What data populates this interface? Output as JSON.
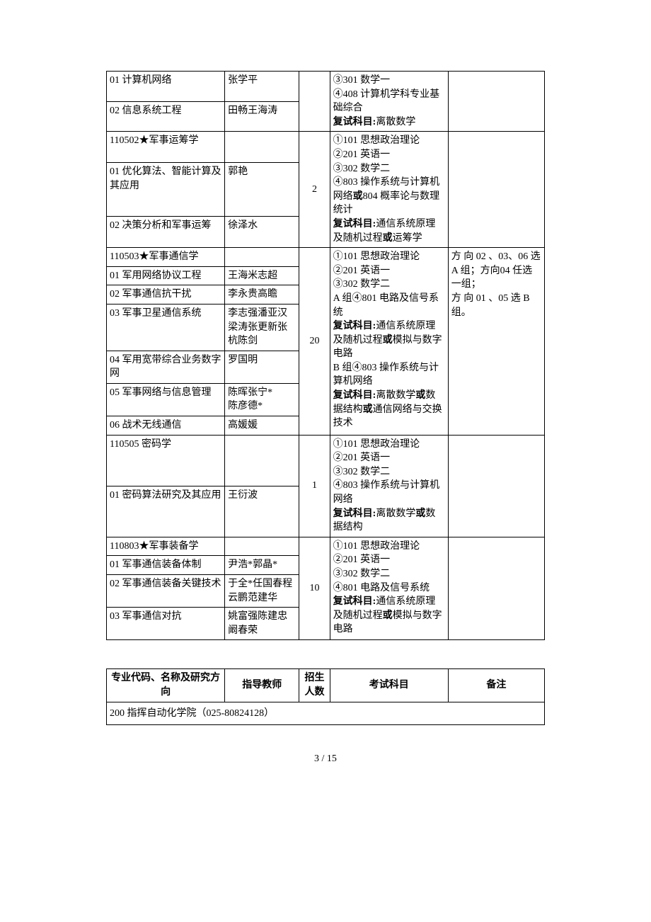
{
  "table1": {
    "groups": [
      {
        "count": "",
        "exam_html": "③301 数学一<br>④408 计算机学科专业基础综合<br><b>复试科目:</b>离散数学",
        "notes": "",
        "rows": [
          {
            "dir": "01  计算机网络",
            "teacher": "张学平"
          },
          {
            "dir": "02  信息系统工程",
            "teacher": "田畅王海涛"
          }
        ]
      },
      {
        "header": "110502★军事运筹学",
        "count": "2",
        "exam_html": "①101 思想政治理论<br>②201 英语一<br>③302 数学二<br>④803 操作系统与计算机网络<b>或</b>804 概率论与数理统计<br><b>复试科目:</b>通信系统原理及随机过程<b>或</b>运筹学",
        "notes": "",
        "rows": [
          {
            "dir": "01  优化算法、智能计算及其应用",
            "teacher": "郭艳"
          },
          {
            "dir": "02  决策分析和军事运筹",
            "teacher": "徐泽水"
          }
        ]
      },
      {
        "header": "110503★军事通信学",
        "count": "20",
        "exam_html": "①101 思想政治理论<br>②201 英语一<br>③302 数学二<br>A 组④801 电路及信号系统<br><b>复试科目:</b>通信系统原理及随机过程<b>或</b>模拟与数字电路<br>B 组④803 操作系统与计算机网络<br><b>复试科目:</b>离散数学<b>或</b>数据结构<b>或</b>通信网络与交换技术",
        "notes": "方 向 02 、03、06 选A 组；方向04 任选一组；<br>方 向 01 、05 选 B 组。",
        "rows": [
          {
            "dir": "01  军用网络协议工程",
            "teacher": "王海米志超"
          },
          {
            "dir": "02  军事通信抗干扰",
            "teacher": "李永贵高瞻"
          },
          {
            "dir": "03  军事卫星通信系统",
            "teacher": "李志强潘亚汉梁涛张更新张杭陈剑"
          },
          {
            "dir": "04  军用宽带综合业务数字网",
            "teacher": "罗国明"
          },
          {
            "dir": "05  军事网络与信息管理",
            "teacher": "陈晖张宁*<br>陈彦德*"
          },
          {
            "dir": "06  战术无线通信",
            "teacher": "高媛媛"
          }
        ]
      },
      {
        "header": "110505 密码学",
        "count": "1",
        "exam_html": "①101 思想政治理论<br>②201 英语一<br>③302 数学二<br>④803 操作系统与计算机网络<br><b>复试科目:</b>离散数学<b>或</b>数据结构",
        "notes": "",
        "rows": [
          {
            "dir": "01  密码算法研究及其应用",
            "teacher": "王衍波"
          }
        ]
      },
      {
        "header": "110803★军事装备学",
        "count": "10",
        "exam_html": "①101 思想政治理论<br>②201 英语一<br>③302 数学二<br>④801 电路及信号系统<br><b>复试科目:</b>通信系统原理及随机过程<b>或</b>模拟与数字电路",
        "notes": "",
        "rows": [
          {
            "dir": "01  军事通信装备体制",
            "teacher": "尹浩*郭晶*"
          },
          {
            "dir": "02  军事通信装备关键技术",
            "teacher": "于全*任国春程云鹏范建华"
          },
          {
            "dir": "03  军事通信对抗",
            "teacher": "姚富强陈建忠阚春荣"
          }
        ]
      }
    ]
  },
  "table2": {
    "headers": {
      "c1": "专业代码、名称及研究方向",
      "c2": "指导教师",
      "c3": "招生人数",
      "c4": "考试科目",
      "c5": "备注"
    },
    "section": "200  指挥自动化学院（025-80824128）"
  },
  "footer": "3 / 15"
}
